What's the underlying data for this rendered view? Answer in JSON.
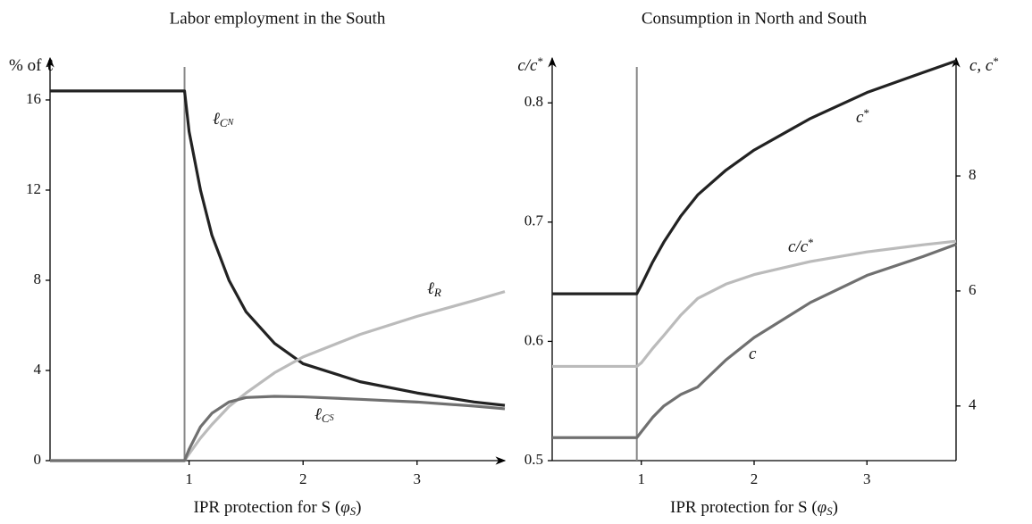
{
  "chart_data": [
    {
      "type": "line",
      "title": "Labor employment in the South",
      "y_label": "% of ℓ",
      "x_label": "IPR protection for S (φS)",
      "x": [
        -0.22,
        0.96,
        1.0,
        1.1,
        1.2,
        1.35,
        1.5,
        1.75,
        2,
        2.5,
        3,
        3.5,
        3.77
      ],
      "series": [
        {
          "name": "ℓCN",
          "color": "#222222",
          "values": [
            16.4,
            16.4,
            14.6,
            12.0,
            10.0,
            8.0,
            6.6,
            5.2,
            4.3,
            3.5,
            3.0,
            2.6,
            2.45
          ]
        },
        {
          "name": "ℓR",
          "color": "#bbbbbb",
          "values": [
            0,
            0,
            0.3,
            1.0,
            1.6,
            2.4,
            3.0,
            3.9,
            4.6,
            5.6,
            6.4,
            7.1,
            7.5
          ]
        },
        {
          "name": "ℓCS",
          "color": "#707070",
          "values": [
            0,
            0,
            0.5,
            1.5,
            2.1,
            2.6,
            2.8,
            2.85,
            2.83,
            2.72,
            2.6,
            2.42,
            2.3
          ]
        }
      ],
      "vline_x": 0.96,
      "xlim": [
        -0.22,
        3.77
      ],
      "xticks": [
        1,
        2,
        3
      ],
      "ylim": [
        0,
        17.86
      ],
      "yticks": [
        0,
        4,
        8,
        12,
        16
      ]
    },
    {
      "type": "line",
      "title": "Consumption in North and South",
      "y_label": "c/c*",
      "y2_label": "c, c*",
      "x_label": "IPR protection for S (φS)",
      "x": [
        0.21,
        0.96,
        1.0,
        1.1,
        1.2,
        1.35,
        1.5,
        1.75,
        2,
        2.5,
        3,
        3.5,
        3.79
      ],
      "series": [
        {
          "name": "c*",
          "color": "#222222",
          "axis": "y2",
          "values": [
            5.95,
            5.95,
            6.1,
            6.5,
            6.85,
            7.3,
            7.67,
            8.1,
            8.45,
            9.0,
            9.45,
            9.8,
            10.0
          ]
        },
        {
          "name": "c/c*",
          "color": "#bbbbbb",
          "values": [
            0.579,
            0.579,
            0.582,
            0.594,
            0.605,
            0.622,
            0.636,
            0.648,
            0.656,
            0.667,
            0.675,
            0.681,
            0.684
          ]
        },
        {
          "name": "c",
          "color": "#707070",
          "axis": "y2",
          "values": [
            3.45,
            3.45,
            3.55,
            3.8,
            4.0,
            4.2,
            4.33,
            4.8,
            5.19,
            5.8,
            6.27,
            6.6,
            6.81
          ]
        }
      ],
      "vline_x": 0.96,
      "xlim": [
        0.21,
        3.79
      ],
      "xticks": [
        1,
        2,
        3
      ],
      "ylim": [
        0.5,
        0.8376
      ],
      "yticks": [
        0.5,
        0.6,
        0.7,
        0.8
      ],
      "y2lim": [
        3.05,
        10.05
      ],
      "y2ticks": [
        4,
        6,
        8
      ]
    }
  ]
}
